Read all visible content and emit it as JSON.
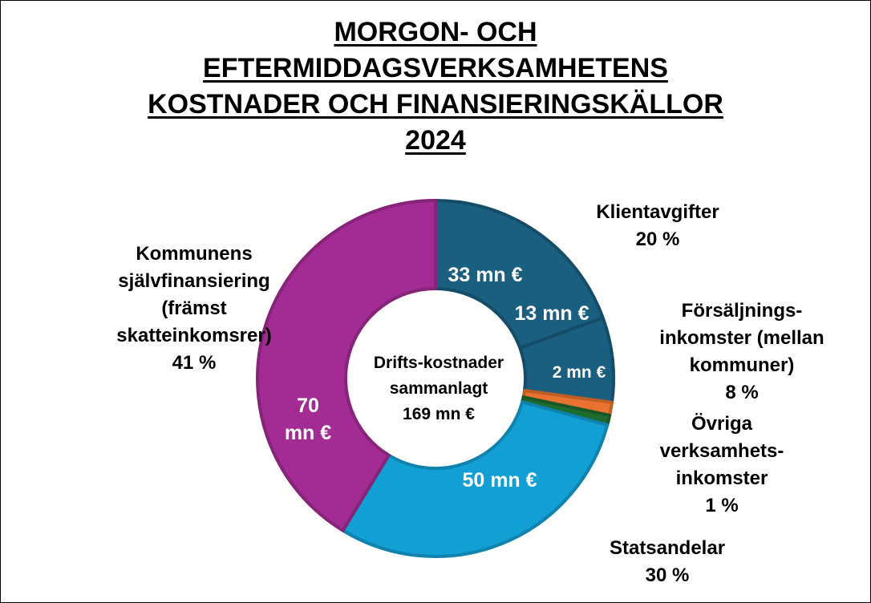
{
  "chart_data": {
    "type": "pie",
    "variant": "donut",
    "title": [
      "MORGON- OCH",
      "EFTERMIDDAGSVERKSAMHETENS",
      "KOSTNADER OCH FINANSIERINGSKÄLLOR",
      "2024"
    ],
    "center_label": [
      "Drifts-kostnader",
      "sammanlagt",
      "169 mn €"
    ],
    "slices": [
      {
        "name": [
          "Klientavgifter"
        ],
        "percent": "20 %",
        "value": 33,
        "value_label": "33 mn €",
        "color": "#1a5e80"
      },
      {
        "name": [
          "Försäljnings-",
          "inkomster (mellan",
          "kommuner)"
        ],
        "percent": "8 %",
        "value": 13,
        "value_label": "13 mn €",
        "color": "#1a5e80"
      },
      {
        "name": [],
        "percent": "",
        "value": 2,
        "value_label": "2 mn €",
        "color": "#e87330"
      },
      {
        "name": [
          "Övriga",
          "verksamhets-",
          "inkomster"
        ],
        "percent": "1 %",
        "value": 1.5,
        "value_label": "",
        "color": "#1e6b2e"
      },
      {
        "name": [
          "Statsandelar"
        ],
        "percent": "30 %",
        "value": 50,
        "value_label": "50 mn €",
        "color": "#129fd3"
      },
      {
        "name": [
          "Kommunens",
          "självfinansiering",
          "(främst",
          "skatteinkomsrer)"
        ],
        "percent": "41 %",
        "value": 70,
        "value_label": "70 mn €",
        "color": "#a22c93"
      }
    ],
    "value_label_lines": {
      "70 mn €": [
        "70",
        "mn €"
      ]
    }
  }
}
